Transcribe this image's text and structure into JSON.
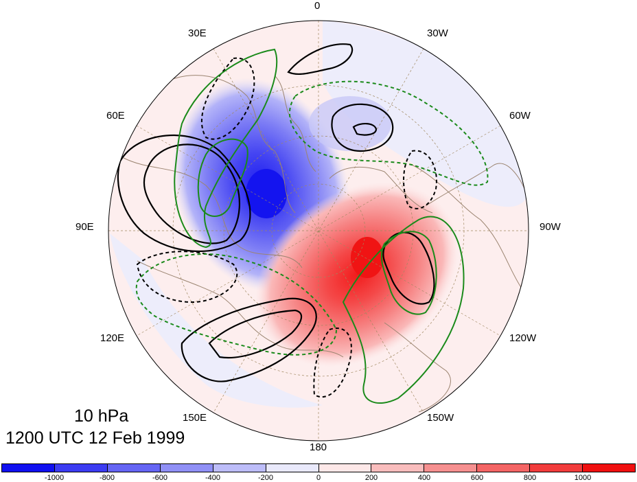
{
  "map": {
    "projection": "north polar stereographic",
    "longitude_labels": [
      "0",
      "30W",
      "60W",
      "90W",
      "120W",
      "150W",
      "180",
      "150E",
      "120E",
      "90E",
      "60E",
      "30E"
    ],
    "colors": {
      "land_outline": "#9b8470",
      "graticule": "#a08860",
      "negative_shading": "#3a3af0",
      "positive_shading": "#f23030",
      "contour_black": "#000000",
      "contour_green": "#1a8a1a"
    }
  },
  "title": {
    "level": "10 hPa",
    "time": "1200 UTC 12 Feb 1999"
  },
  "colorbar": {
    "tick_labels": [
      "-1000",
      "-800",
      "-600",
      "-400",
      "-200",
      "0",
      "200",
      "400",
      "600",
      "800",
      "1000"
    ],
    "box_colors": [
      "#1010f0",
      "#3c3cf2",
      "#6565f4",
      "#9090f6",
      "#bdbdf9",
      "#e9e9fb",
      "#fde8e8",
      "#f9bdbd",
      "#f69090",
      "#f46565",
      "#f23c3c",
      "#f01010"
    ]
  }
}
